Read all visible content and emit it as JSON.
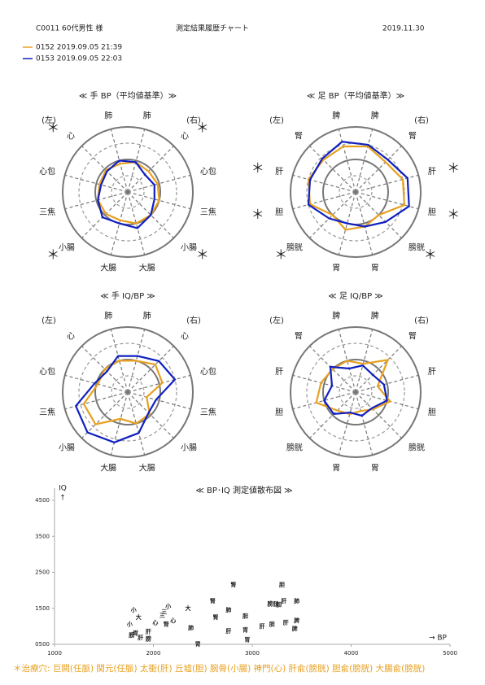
{
  "header": {
    "patient": "C0011 60代男性 様",
    "title": "測定結果履歴チャート",
    "date": "2019.11.30"
  },
  "legend": [
    {
      "name": "0152 2019.09.05 21:39",
      "color": "#e8a020"
    },
    {
      "name": "0153 2019.09.05 22:03",
      "color": "#1020c0"
    }
  ],
  "treatment_mark": "＊",
  "footer": "＊治療穴: 巨闕(任脈) 関元(任脈) 太衝(肝) 丘墟(胆) 腕骨(小腸) 神門(心) 肝兪(膀胱) 胆兪(膀胱) 大腸兪(膀胱)",
  "chart_data": [
    {
      "type": "radar",
      "title": "≪ 手 BP（平均値基準）≫",
      "left_label": "(左)",
      "right_label": "(右)",
      "categories": [
        "肺",
        "心",
        "心包",
        "三焦",
        "小腸",
        "大腸",
        "大腸",
        "小腸",
        "三焦",
        "心包",
        "心",
        "肺"
      ],
      "category_colors": [
        "#1a2a9a",
        "#1a2a9a",
        "#1a2a9a",
        "#7a1010",
        "#7a1010",
        "#7a1010",
        "#7a1010",
        "#7a1010",
        "#7a1010",
        "#1a2a9a",
        "#1a2a9a",
        "#1a2a9a"
      ],
      "highlight": [
        1,
        4,
        7,
        10
      ],
      "rlim": [
        0,
        4
      ],
      "rticks": [
        1,
        2,
        3,
        4
      ],
      "series": [
        {
          "color": "#e8a020",
          "values": [
            1.9,
            1.8,
            1.9,
            2.0,
            2.0,
            2.0,
            1.8,
            1.9,
            1.9,
            1.8,
            1.9,
            1.8
          ]
        },
        {
          "color": "#1020c0",
          "values": [
            1.9,
            1.5,
            1.7,
            1.7,
            2.0,
            2.3,
            2.0,
            2.2,
            1.9,
            1.7,
            1.8,
            2.0
          ]
        }
      ]
    },
    {
      "type": "radar",
      "title": "≪ 足 BP（平均値基準）≫",
      "left_label": "(左)",
      "right_label": "(右)",
      "categories": [
        "脾",
        "腎",
        "肝",
        "胆",
        "膀胱",
        "胃",
        "胃",
        "膀胱",
        "胆",
        "肝",
        "腎",
        "脾"
      ],
      "category_colors": [
        "#1a2a9a",
        "#1a2a9a",
        "#1a2a9a",
        "#7a1010",
        "#7a1010",
        "#7a1010",
        "#7a1010",
        "#7a1010",
        "#7a1010",
        "#1a2a9a",
        "#1a2a9a",
        "#1a2a9a"
      ],
      "highlight": [
        2,
        3,
        4,
        7,
        8,
        9
      ],
      "rlim": [
        0,
        4
      ],
      "rticks": [
        1,
        2,
        3,
        4
      ],
      "series": [
        {
          "color": "#e8a020",
          "values": [
            2.9,
            2.6,
            3.0,
            3.1,
            2.0,
            2.2,
            2.4,
            2.0,
            2.9,
            3.0,
            2.8,
            2.9
          ]
        },
        {
          "color": "#1020c0",
          "values": [
            3.0,
            2.8,
            3.3,
            3.4,
            2.6,
            2.2,
            2.0,
            2.3,
            3.0,
            2.9,
            2.9,
            3.2
          ]
        }
      ]
    },
    {
      "type": "radar",
      "title": "≪ 手 IQ/BP ≫",
      "left_label": "(左)",
      "right_label": "(右)",
      "categories": [
        "肺",
        "心",
        "心包",
        "三焦",
        "小腸",
        "大腸",
        "大腸",
        "小腸",
        "三焦",
        "心包",
        "心",
        "肺"
      ],
      "category_colors": [
        "#1a2a9a",
        "#1a2a9a",
        "#1a2a9a",
        "#7a1010",
        "#7a1010",
        "#7a1010",
        "#7a1010",
        "#7a1010",
        "#7a1010",
        "#1a2a9a",
        "#1a2a9a",
        "#1a2a9a"
      ],
      "highlight": [],
      "rlim": [
        0,
        4
      ],
      "rticks": [
        1,
        2,
        3,
        4
      ],
      "series": [
        {
          "color": "#e8a020",
          "values": [
            2.0,
            2.4,
            2.2,
            1.2,
            1.9,
            2.0,
            1.7,
            2.8,
            2.8,
            1.9,
            2.0,
            2.0
          ]
        },
        {
          "color": "#1020c0",
          "values": [
            2.3,
            2.7,
            3.0,
            1.8,
            1.8,
            2.6,
            3.2,
            3.5,
            3.3,
            2.1,
            1.8,
            2.3
          ]
        }
      ]
    },
    {
      "type": "radar",
      "title": "≪ 足 IQ/BP ≫",
      "left_label": "(左)",
      "right_label": "(右)",
      "categories": [
        "脾",
        "腎",
        "肝",
        "胆",
        "膀胱",
        "胃",
        "胃",
        "膀胱",
        "胆",
        "肝",
        "腎",
        "脾"
      ],
      "category_colors": [
        "#1a2a9a",
        "#1a2a9a",
        "#1a2a9a",
        "#7a1010",
        "#7a1010",
        "#7a1010",
        "#7a1010",
        "#7a1010",
        "#7a1010",
        "#1a2a9a",
        "#1a2a9a",
        "#1a2a9a"
      ],
      "highlight": [],
      "rlim": [
        0,
        4
      ],
      "rticks": [
        1,
        2,
        3,
        4
      ],
      "series": [
        {
          "color": "#e8a020",
          "values": [
            1.8,
            2.8,
            1.4,
            2.2,
            1.5,
            1.2,
            1.4,
            1.6,
            2.5,
            2.2,
            2.0,
            2.0
          ]
        },
        {
          "color": "#1020c0",
          "values": [
            1.7,
            1.5,
            1.8,
            2.0,
            1.4,
            1.5,
            1.3,
            1.9,
            2.0,
            1.5,
            2.2,
            1.5
          ]
        }
      ]
    },
    {
      "type": "scatter",
      "title": "≪ BP･IQ 測定値散布図 ≫",
      "xlabel": "→ BP",
      "ylabel": "IQ",
      "ylabel_arrow": "↑",
      "xlim": [
        1000,
        5000
      ],
      "xticks": [
        1000,
        2000,
        3000,
        4000,
        5000
      ],
      "ylim": [
        500,
        4840
      ],
      "yticks": [
        {
          "value": 500,
          "label": "0500"
        },
        1500,
        2500,
        3500,
        4500
      ],
      "points": [
        {
          "name": "腎",
          "x": 2810,
          "y": 2150,
          "color": "#e8a020"
        },
        {
          "name": "胆",
          "x": 3300,
          "y": 2150,
          "color": "#e8a020"
        },
        {
          "name": "膀胱",
          "x": 3210,
          "y": 1620,
          "color": "#e8a020"
        },
        {
          "name": "肝",
          "x": 3320,
          "y": 1700,
          "color": "#e8a020"
        },
        {
          "name": "胃",
          "x": 2950,
          "y": 620,
          "color": "#e8a020"
        },
        {
          "name": "肝",
          "x": 3100,
          "y": 1000,
          "color": "#e8a020"
        },
        {
          "name": "胆",
          "x": 3200,
          "y": 1050,
          "color": "#e8a020"
        },
        {
          "name": "脾",
          "x": 3450,
          "y": 1150,
          "color": "#e8a020"
        },
        {
          "name": "大",
          "x": 2350,
          "y": 1500,
          "color": "#e8a020"
        },
        {
          "name": "腎",
          "x": 2600,
          "y": 1700,
          "color": "#e8a020"
        },
        {
          "name": "肺",
          "x": 2760,
          "y": 1450,
          "color": "#e8a020"
        },
        {
          "name": "小",
          "x": 2150,
          "y": 1550,
          "color": "#e8a020"
        },
        {
          "name": "三",
          "x": 2110,
          "y": 1400,
          "color": "#e8a020"
        },
        {
          "name": "心",
          "x": 2200,
          "y": 1150,
          "color": "#e8a020"
        },
        {
          "name": "膀",
          "x": 1780,
          "y": 750,
          "color": "#e8a020"
        },
        {
          "name": "肝",
          "x": 1870,
          "y": 680,
          "color": "#e8a020"
        },
        {
          "name": "肺",
          "x": 3450,
          "y": 1700,
          "color": "#1020c0"
        },
        {
          "name": "胆",
          "x": 3270,
          "y": 1600,
          "color": "#1020c0"
        },
        {
          "name": "胆",
          "x": 2930,
          "y": 1280,
          "color": "#1020c0"
        },
        {
          "name": "肝",
          "x": 3340,
          "y": 1100,
          "color": "#1020c0"
        },
        {
          "name": "胃",
          "x": 2930,
          "y": 900,
          "color": "#1020c0"
        },
        {
          "name": "脾",
          "x": 3430,
          "y": 930,
          "color": "#1020c0"
        },
        {
          "name": "肝",
          "x": 2760,
          "y": 860,
          "color": "#1020c0"
        },
        {
          "name": "腎",
          "x": 2630,
          "y": 1250,
          "color": "#1020c0"
        },
        {
          "name": "胃",
          "x": 2450,
          "y": 500,
          "color": "#1020c0"
        },
        {
          "name": "肺",
          "x": 2380,
          "y": 950,
          "color": "#1020c0"
        },
        {
          "name": "腎",
          "x": 2130,
          "y": 1050,
          "color": "#1020c0"
        },
        {
          "name": "心",
          "x": 2020,
          "y": 1100,
          "color": "#1020c0"
        },
        {
          "name": "小",
          "x": 1800,
          "y": 1450,
          "color": "#1020c0"
        },
        {
          "name": "大",
          "x": 1850,
          "y": 1250,
          "color": "#1020c0"
        },
        {
          "name": "三",
          "x": 2090,
          "y": 1300,
          "color": "#1020c0"
        },
        {
          "name": "小",
          "x": 1760,
          "y": 1050,
          "color": "#1020c0"
        },
        {
          "name": "肝",
          "x": 1950,
          "y": 850,
          "color": "#1020c0"
        },
        {
          "name": "膀",
          "x": 1950,
          "y": 650,
          "color": "#1020c0"
        },
        {
          "name": "胃",
          "x": 1820,
          "y": 800,
          "color": "#1020c0"
        }
      ]
    }
  ]
}
